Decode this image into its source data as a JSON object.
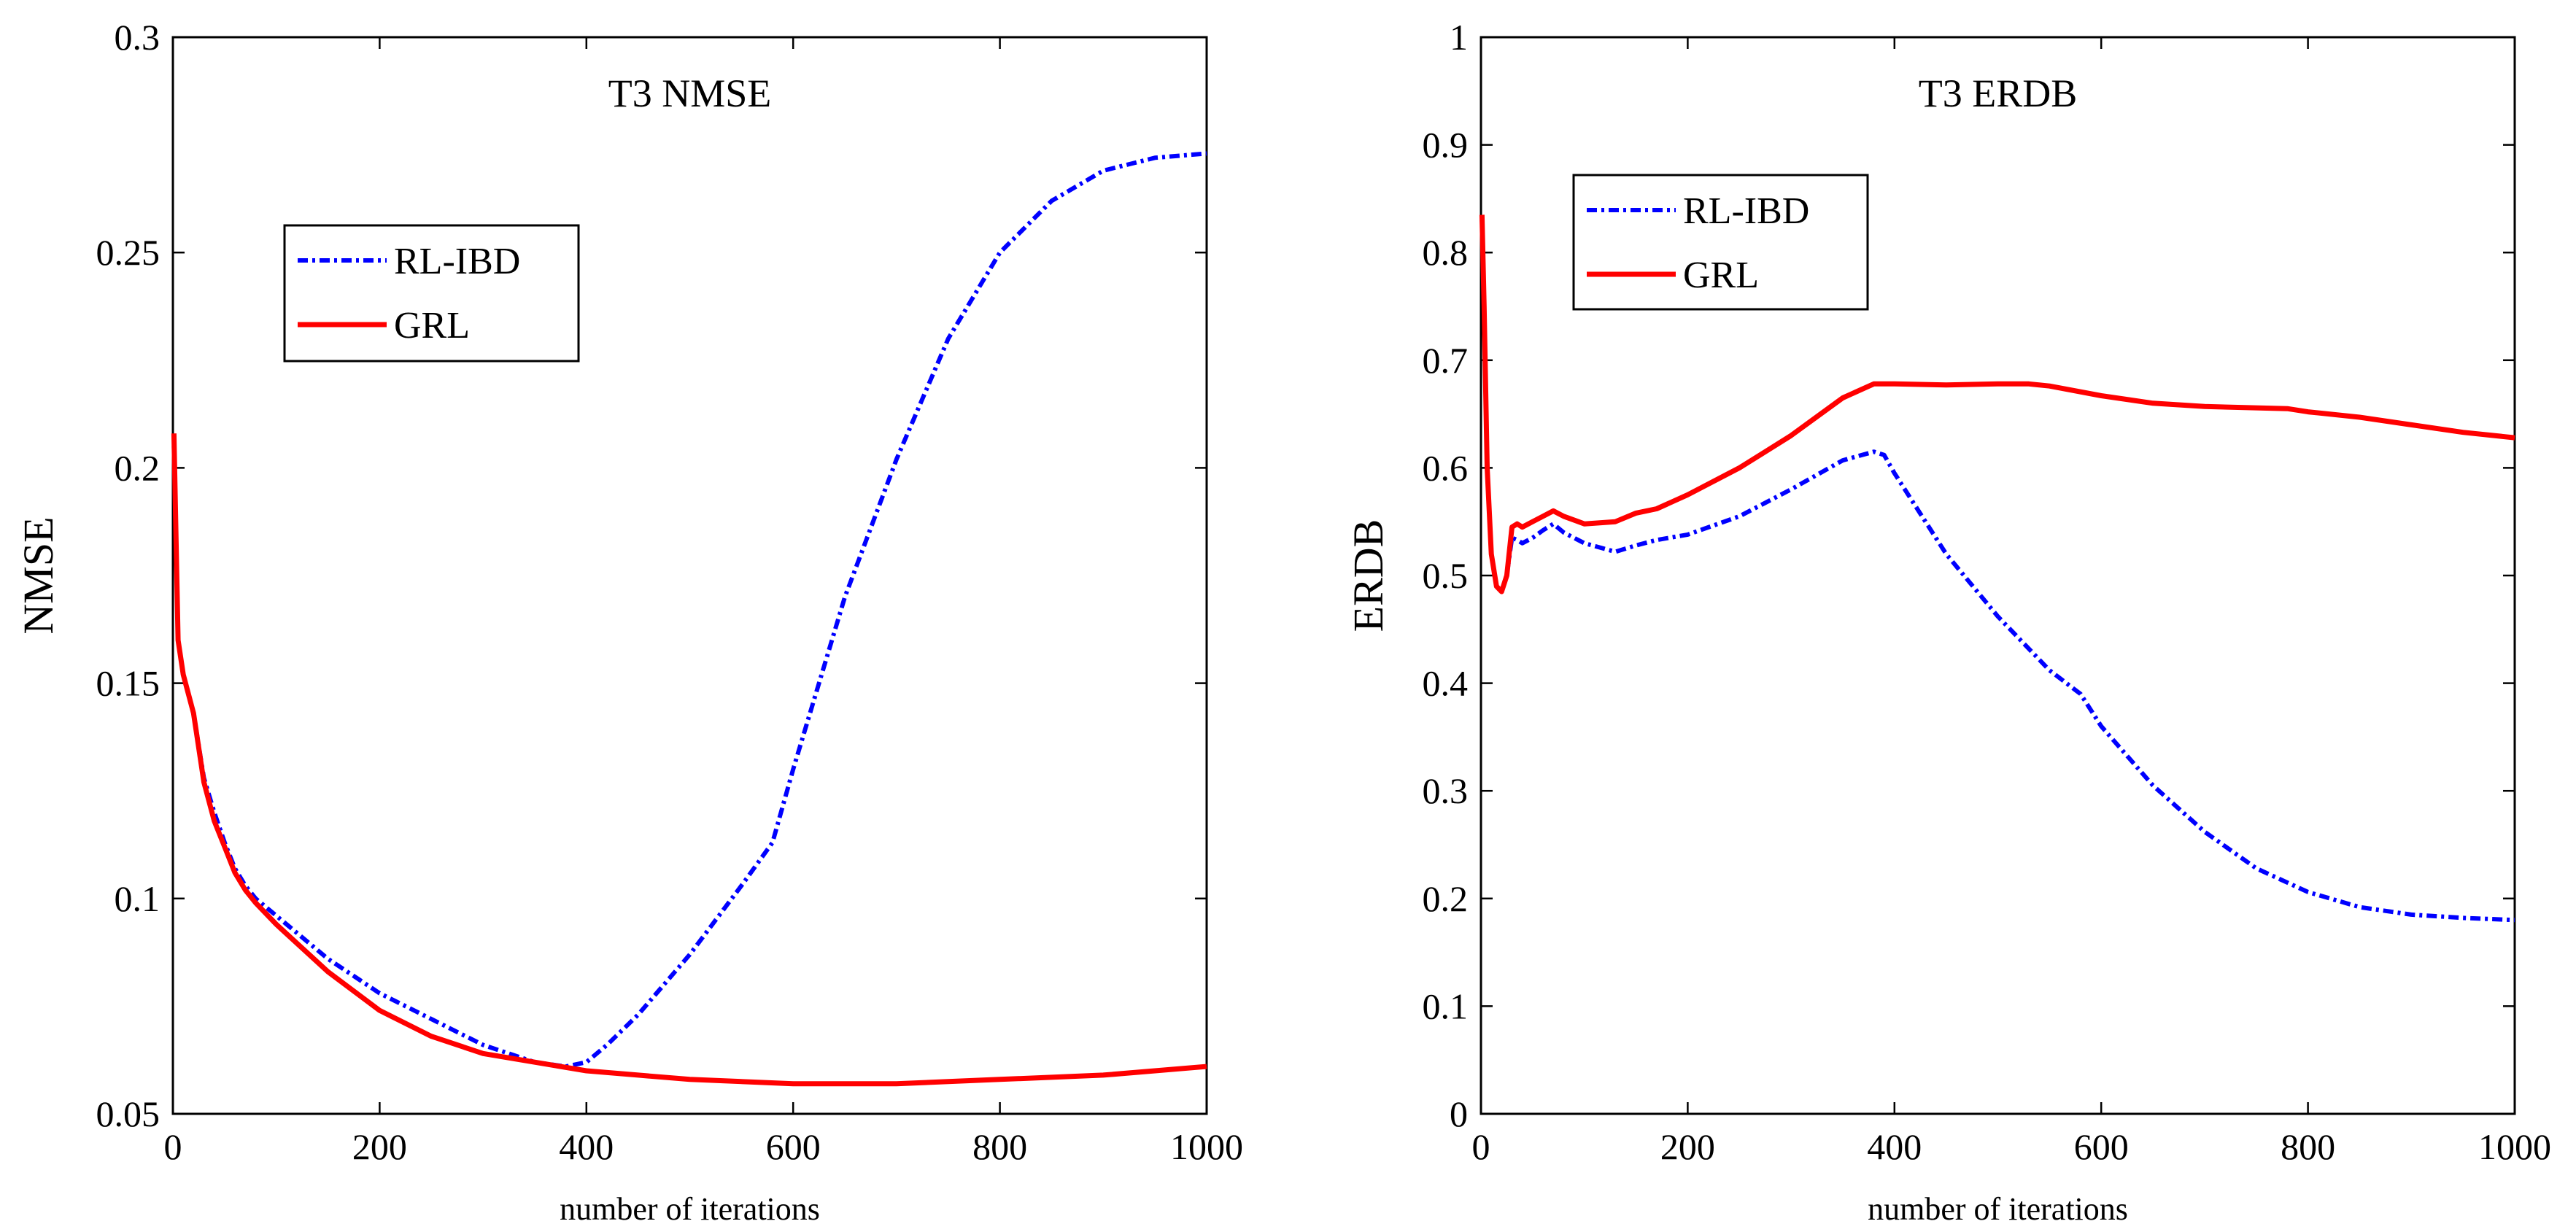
{
  "chart_data": [
    {
      "type": "line",
      "title": "T3 NMSE",
      "xlabel": "number of iterations",
      "ylabel": "NMSE",
      "xlim": [
        0,
        1000
      ],
      "ylim": [
        0.05,
        0.3
      ],
      "xticks": [
        0,
        200,
        400,
        600,
        800,
        1000
      ],
      "xtick_labels": [
        "0",
        "200",
        "400",
        "600",
        "800",
        "1000"
      ],
      "yticks": [
        0.05,
        0.1,
        0.15,
        0.2,
        0.25,
        0.3
      ],
      "ytick_labels": [
        "0.05",
        "0.1",
        "0.15",
        "0.2",
        "0.25",
        "0.3"
      ],
      "grid": false,
      "legend_position": "upper-left",
      "series": [
        {
          "name": "RL-IBD",
          "color": "#0000ff",
          "style": "dash-dot",
          "x": [
            1,
            5,
            10,
            20,
            30,
            40,
            50,
            60,
            70,
            80,
            100,
            150,
            200,
            250,
            300,
            350,
            380,
            400,
            420,
            450,
            500,
            550,
            580,
            600,
            650,
            700,
            750,
            800,
            850,
            900,
            950,
            1000
          ],
          "y": [
            0.205,
            0.16,
            0.152,
            0.143,
            0.128,
            0.12,
            0.113,
            0.107,
            0.103,
            0.1,
            0.096,
            0.086,
            0.078,
            0.072,
            0.066,
            0.062,
            0.061,
            0.062,
            0.066,
            0.073,
            0.087,
            0.103,
            0.113,
            0.13,
            0.17,
            0.202,
            0.23,
            0.25,
            0.262,
            0.269,
            0.272,
            0.273
          ]
        },
        {
          "name": "GRL",
          "color": "#ff0000",
          "style": "solid",
          "x": [
            1,
            5,
            10,
            20,
            30,
            40,
            50,
            60,
            70,
            80,
            100,
            150,
            200,
            250,
            300,
            350,
            400,
            450,
            500,
            600,
            650,
            700,
            800,
            900,
            1000
          ],
          "y": [
            0.208,
            0.16,
            0.152,
            0.143,
            0.127,
            0.118,
            0.112,
            0.106,
            0.102,
            0.099,
            0.094,
            0.083,
            0.074,
            0.068,
            0.064,
            0.062,
            0.06,
            0.059,
            0.058,
            0.057,
            0.057,
            0.057,
            0.058,
            0.059,
            0.061
          ]
        }
      ]
    },
    {
      "type": "line",
      "title": "T3 ERDB",
      "xlabel": "number of iterations",
      "ylabel": "ERDB",
      "xlim": [
        0,
        1000
      ],
      "ylim": [
        0,
        1
      ],
      "xticks": [
        0,
        200,
        400,
        600,
        800,
        1000
      ],
      "xtick_labels": [
        "0",
        "200",
        "400",
        "600",
        "800",
        "1000"
      ],
      "yticks": [
        0,
        0.1,
        0.2,
        0.3,
        0.4,
        0.5,
        0.6,
        0.7,
        0.8,
        0.9,
        1
      ],
      "ytick_labels": [
        "0",
        "0.1",
        "0.2",
        "0.3",
        "0.4",
        "0.5",
        "0.6",
        "0.7",
        "0.8",
        "0.9",
        "1"
      ],
      "grid": false,
      "legend_position": "upper-left",
      "series": [
        {
          "name": "RL-IBD",
          "color": "#0000ff",
          "style": "dash-dot",
          "x": [
            1,
            3,
            6,
            10,
            15,
            20,
            25,
            30,
            35,
            40,
            50,
            60,
            70,
            80,
            100,
            130,
            150,
            170,
            200,
            250,
            300,
            350,
            380,
            390,
            400,
            450,
            500,
            550,
            580,
            600,
            650,
            700,
            750,
            800,
            850,
            900,
            950,
            1000
          ],
          "y": [
            0.83,
            0.75,
            0.6,
            0.52,
            0.49,
            0.485,
            0.5,
            0.535,
            0.533,
            0.53,
            0.535,
            0.542,
            0.548,
            0.54,
            0.53,
            0.522,
            0.528,
            0.533,
            0.538,
            0.555,
            0.58,
            0.607,
            0.615,
            0.612,
            0.595,
            0.52,
            0.462,
            0.412,
            0.39,
            0.36,
            0.305,
            0.262,
            0.228,
            0.206,
            0.192,
            0.185,
            0.182,
            0.18
          ]
        },
        {
          "name": "GRL",
          "color": "#ff0000",
          "style": "solid",
          "x": [
            1,
            3,
            6,
            10,
            15,
            20,
            25,
            30,
            35,
            40,
            50,
            60,
            70,
            80,
            100,
            130,
            150,
            170,
            200,
            250,
            300,
            350,
            380,
            400,
            450,
            500,
            530,
            550,
            600,
            650,
            700,
            780,
            800,
            850,
            900,
            950,
            1000
          ],
          "y": [
            0.835,
            0.75,
            0.6,
            0.52,
            0.49,
            0.485,
            0.5,
            0.545,
            0.548,
            0.545,
            0.55,
            0.555,
            0.56,
            0.555,
            0.548,
            0.55,
            0.558,
            0.562,
            0.575,
            0.6,
            0.63,
            0.665,
            0.678,
            0.678,
            0.677,
            0.678,
            0.678,
            0.676,
            0.667,
            0.66,
            0.657,
            0.655,
            0.652,
            0.647,
            0.64,
            0.633,
            0.628
          ]
        }
      ]
    }
  ]
}
